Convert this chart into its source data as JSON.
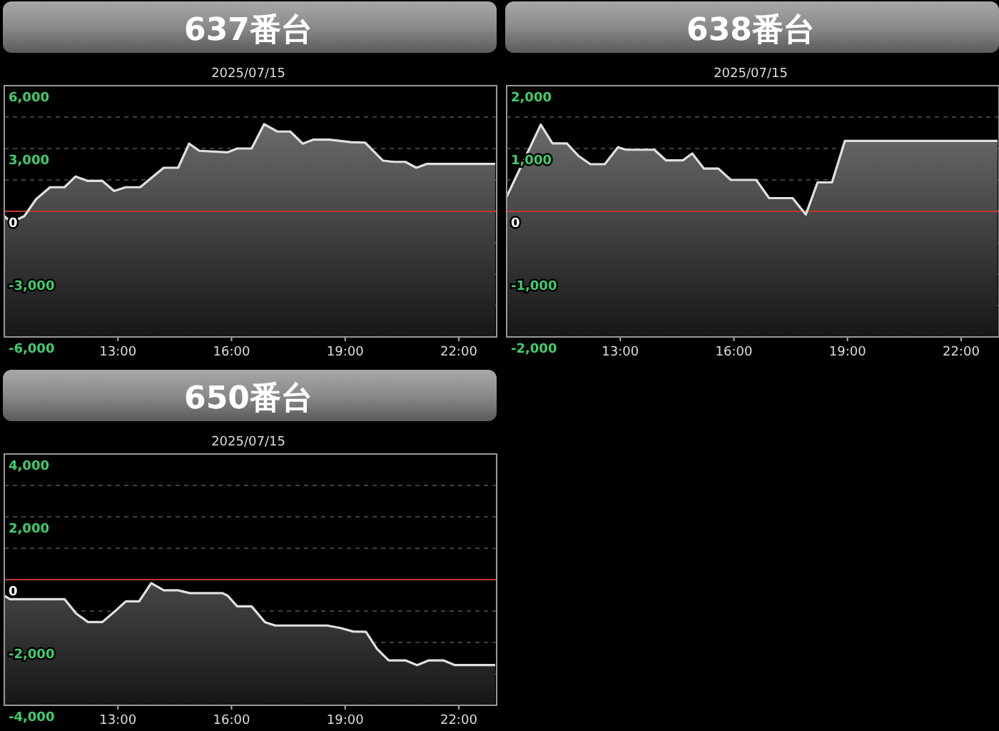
{
  "chart_data": [
    {
      "type": "line",
      "title": "637番台",
      "subtitle": "2025/07/15",
      "grid": "y",
      "legend": false,
      "color": "#e0e0e0",
      "xlim": [
        10,
        23
      ],
      "xticks": [
        {
          "value": 13,
          "label": "13:00"
        },
        {
          "value": 16,
          "label": "16:00"
        },
        {
          "value": 19,
          "label": "19:00"
        },
        {
          "value": 22,
          "label": "22:00"
        }
      ],
      "ylim": [
        -6000,
        6000
      ],
      "yticks": [
        {
          "value": -6000,
          "label": "-6,000"
        },
        {
          "value": -4500,
          "label": null
        },
        {
          "value": -3000,
          "label": "-3,000"
        },
        {
          "value": -1500,
          "label": null
        },
        {
          "value": 0,
          "label": "0"
        },
        {
          "value": 1500,
          "label": null
        },
        {
          "value": 3000,
          "label": "3,000"
        },
        {
          "value": 4500,
          "label": null
        },
        {
          "value": 6000,
          "label": "6,000"
        }
      ],
      "ref_lines": [
        {
          "axis": "y",
          "value": 0,
          "color": "#c0392b"
        }
      ],
      "x": [
        10.0,
        10.18,
        10.53,
        10.84,
        11.21,
        11.59,
        11.88,
        12.21,
        12.59,
        12.9,
        13.21,
        13.59,
        13.9,
        14.21,
        14.59,
        14.88,
        15.15,
        15.9,
        16.15,
        16.53,
        16.86,
        17.21,
        17.55,
        17.88,
        18.15,
        18.59,
        19.15,
        19.53,
        20.0,
        20.28,
        20.59,
        20.88,
        21.15,
        22.96
      ],
      "values": [
        -230,
        -530,
        -230,
        580,
        1150,
        1150,
        1660,
        1450,
        1450,
        970,
        1150,
        1150,
        1620,
        2080,
        2080,
        3230,
        2890,
        2820,
        3000,
        3000,
        4160,
        3810,
        3810,
        3230,
        3420,
        3420,
        3300,
        3280,
        2420,
        2360,
        2360,
        2080,
        2260,
        2260
      ]
    },
    {
      "type": "line",
      "title": "638番台",
      "subtitle": "2025/07/15",
      "grid": "y",
      "legend": false,
      "color": "#e0e0e0",
      "xlim": [
        10,
        23
      ],
      "xticks": [
        {
          "value": 13,
          "label": "13:00"
        },
        {
          "value": 16,
          "label": "16:00"
        },
        {
          "value": 19,
          "label": "19:00"
        },
        {
          "value": 22,
          "label": "22:00"
        }
      ],
      "ylim": [
        -2000,
        2000
      ],
      "yticks": [
        {
          "value": -2000,
          "label": "-2,000"
        },
        {
          "value": -1500,
          "label": null
        },
        {
          "value": -1000,
          "label": "-1,000"
        },
        {
          "value": -500,
          "label": null
        },
        {
          "value": 0,
          "label": "0"
        },
        {
          "value": 500,
          "label": null
        },
        {
          "value": 1000,
          "label": "1,000"
        },
        {
          "value": 1500,
          "label": null
        },
        {
          "value": 2000,
          "label": "2,000"
        }
      ],
      "ref_lines": [
        {
          "axis": "y",
          "value": 0,
          "color": "#c0392b"
        }
      ],
      "x": [
        10.0,
        10.9,
        11.21,
        11.59,
        11.9,
        12.21,
        12.59,
        12.94,
        13.15,
        13.9,
        14.21,
        14.65,
        14.9,
        15.21,
        15.59,
        15.92,
        16.59,
        16.93,
        17.55,
        17.9,
        18.21,
        18.59,
        18.93,
        22.96
      ],
      "values": [
        230,
        1380,
        1080,
        1080,
        880,
        750,
        750,
        1020,
        980,
        980,
        810,
        810,
        920,
        680,
        680,
        500,
        500,
        210,
        210,
        -50,
        460,
        460,
        1120,
        1120
      ]
    },
    {
      "type": "line",
      "title": "650番台",
      "subtitle": "2025/07/15",
      "grid": "y",
      "legend": false,
      "color": "#e0e0e0",
      "xlim": [
        10,
        23
      ],
      "xticks": [
        {
          "value": 13,
          "label": "13:00"
        },
        {
          "value": 16,
          "label": "16:00"
        },
        {
          "value": 19,
          "label": "19:00"
        },
        {
          "value": 22,
          "label": "22:00"
        }
      ],
      "ylim": [
        -4000,
        4000
      ],
      "yticks": [
        {
          "value": -4000,
          "label": "-4,000"
        },
        {
          "value": -3000,
          "label": null
        },
        {
          "value": -2000,
          "label": "-2,000"
        },
        {
          "value": -1000,
          "label": null
        },
        {
          "value": 0,
          "label": "0"
        },
        {
          "value": 1000,
          "label": null
        },
        {
          "value": 2000,
          "label": "2,000"
        },
        {
          "value": 3000,
          "label": null
        },
        {
          "value": 4000,
          "label": "4,000"
        }
      ],
      "ref_lines": [
        {
          "axis": "y",
          "value": 0,
          "color": "#c0392b"
        }
      ],
      "x": [
        10.0,
        10.15,
        11.59,
        11.9,
        12.21,
        12.59,
        12.9,
        13.21,
        13.56,
        13.88,
        14.21,
        14.59,
        14.9,
        15.76,
        15.9,
        16.15,
        16.53,
        16.88,
        17.15,
        18.53,
        18.88,
        19.21,
        19.55,
        19.84,
        20.15,
        20.59,
        20.9,
        21.21,
        21.59,
        21.9,
        22.96
      ],
      "values": [
        -510,
        -620,
        -620,
        -1080,
        -1350,
        -1350,
        -1030,
        -690,
        -690,
        -110,
        -340,
        -340,
        -430,
        -430,
        -510,
        -850,
        -850,
        -1350,
        -1460,
        -1460,
        -1540,
        -1650,
        -1660,
        -2200,
        -2570,
        -2570,
        -2720,
        -2570,
        -2570,
        -2720,
        -2720
      ]
    }
  ]
}
